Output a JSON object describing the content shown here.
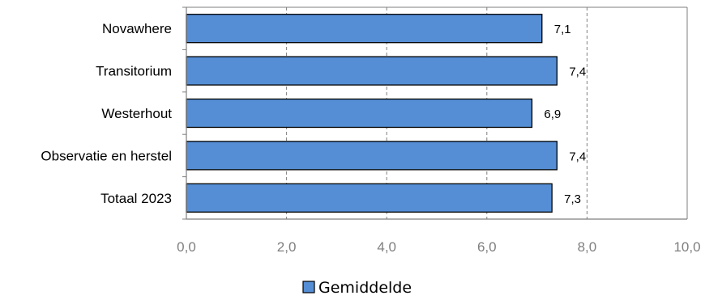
{
  "chart_data": {
    "type": "bar",
    "orientation": "horizontal",
    "categories": [
      "Novawhere",
      "Transitorium",
      "Westerhout",
      "Observatie en herstel",
      "Totaal 2023"
    ],
    "series": [
      {
        "name": "Gemiddelde",
        "values": [
          7.1,
          7.4,
          6.9,
          7.4,
          7.3
        ],
        "value_labels": [
          "7,1",
          "7,4",
          "6,9",
          "7,4",
          "7,3"
        ],
        "color": "#558ed5"
      }
    ],
    "xlim": [
      0,
      10
    ],
    "x_ticks": [
      0,
      2,
      4,
      6,
      8,
      10
    ],
    "x_tick_labels": [
      "0,0",
      "2,0",
      "4,0",
      "6,0",
      "8,0",
      "10,0"
    ],
    "grid": "vertical dashed",
    "legend_position": "bottom"
  },
  "colors": {
    "bar_fill": "#558ed5",
    "bar_stroke": "#000000",
    "axis": "#7f7f7f",
    "grid": "#7f7f7f"
  }
}
